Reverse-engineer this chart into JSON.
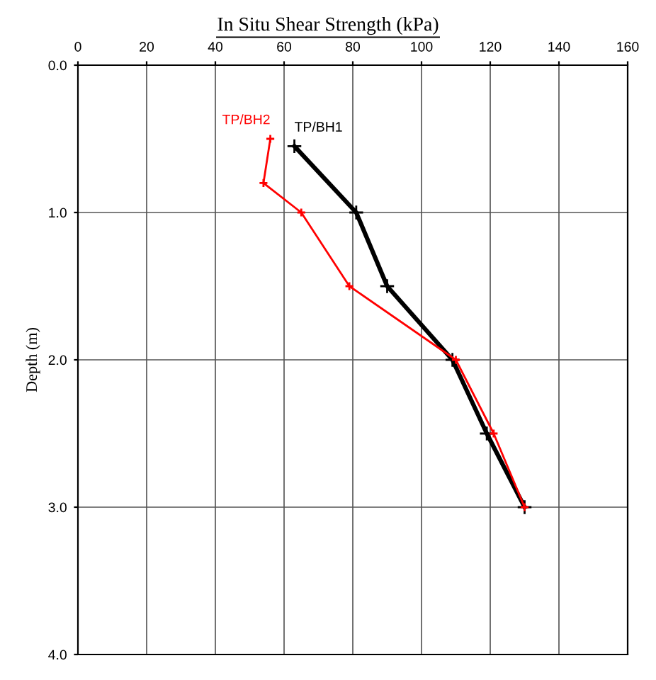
{
  "chart_data": {
    "type": "line",
    "title": "In Situ Shear Strength (kPa)",
    "ylabel": "Depth (m)",
    "series": [
      {
        "name": "TP/BH1",
        "color": "#000000",
        "x": [
          63,
          81,
          90,
          109,
          119,
          130
        ],
        "values": [
          0.55,
          1.0,
          1.5,
          2.0,
          2.5,
          3.0
        ]
      },
      {
        "name": "TP/BH2",
        "color": "#ff0000",
        "x": [
          56,
          54,
          65,
          79,
          110,
          121,
          130
        ],
        "values": [
          0.5,
          0.8,
          1.0,
          1.5,
          2.0,
          2.5,
          3.0
        ]
      }
    ],
    "xlim": [
      0,
      160
    ],
    "xticks": [
      0,
      20,
      40,
      60,
      80,
      100,
      120,
      140,
      160
    ],
    "ylim": [
      4,
      0
    ],
    "yticks": [
      {
        "value": 0,
        "label": "0.0"
      },
      {
        "value": 1,
        "label": "1.0"
      },
      {
        "value": 2,
        "label": "2.0"
      },
      {
        "value": 3,
        "label": "3.0"
      },
      {
        "value": 4,
        "label": "4.0"
      }
    ],
    "grid": true,
    "marker": "cross",
    "line_style": "solid"
  }
}
